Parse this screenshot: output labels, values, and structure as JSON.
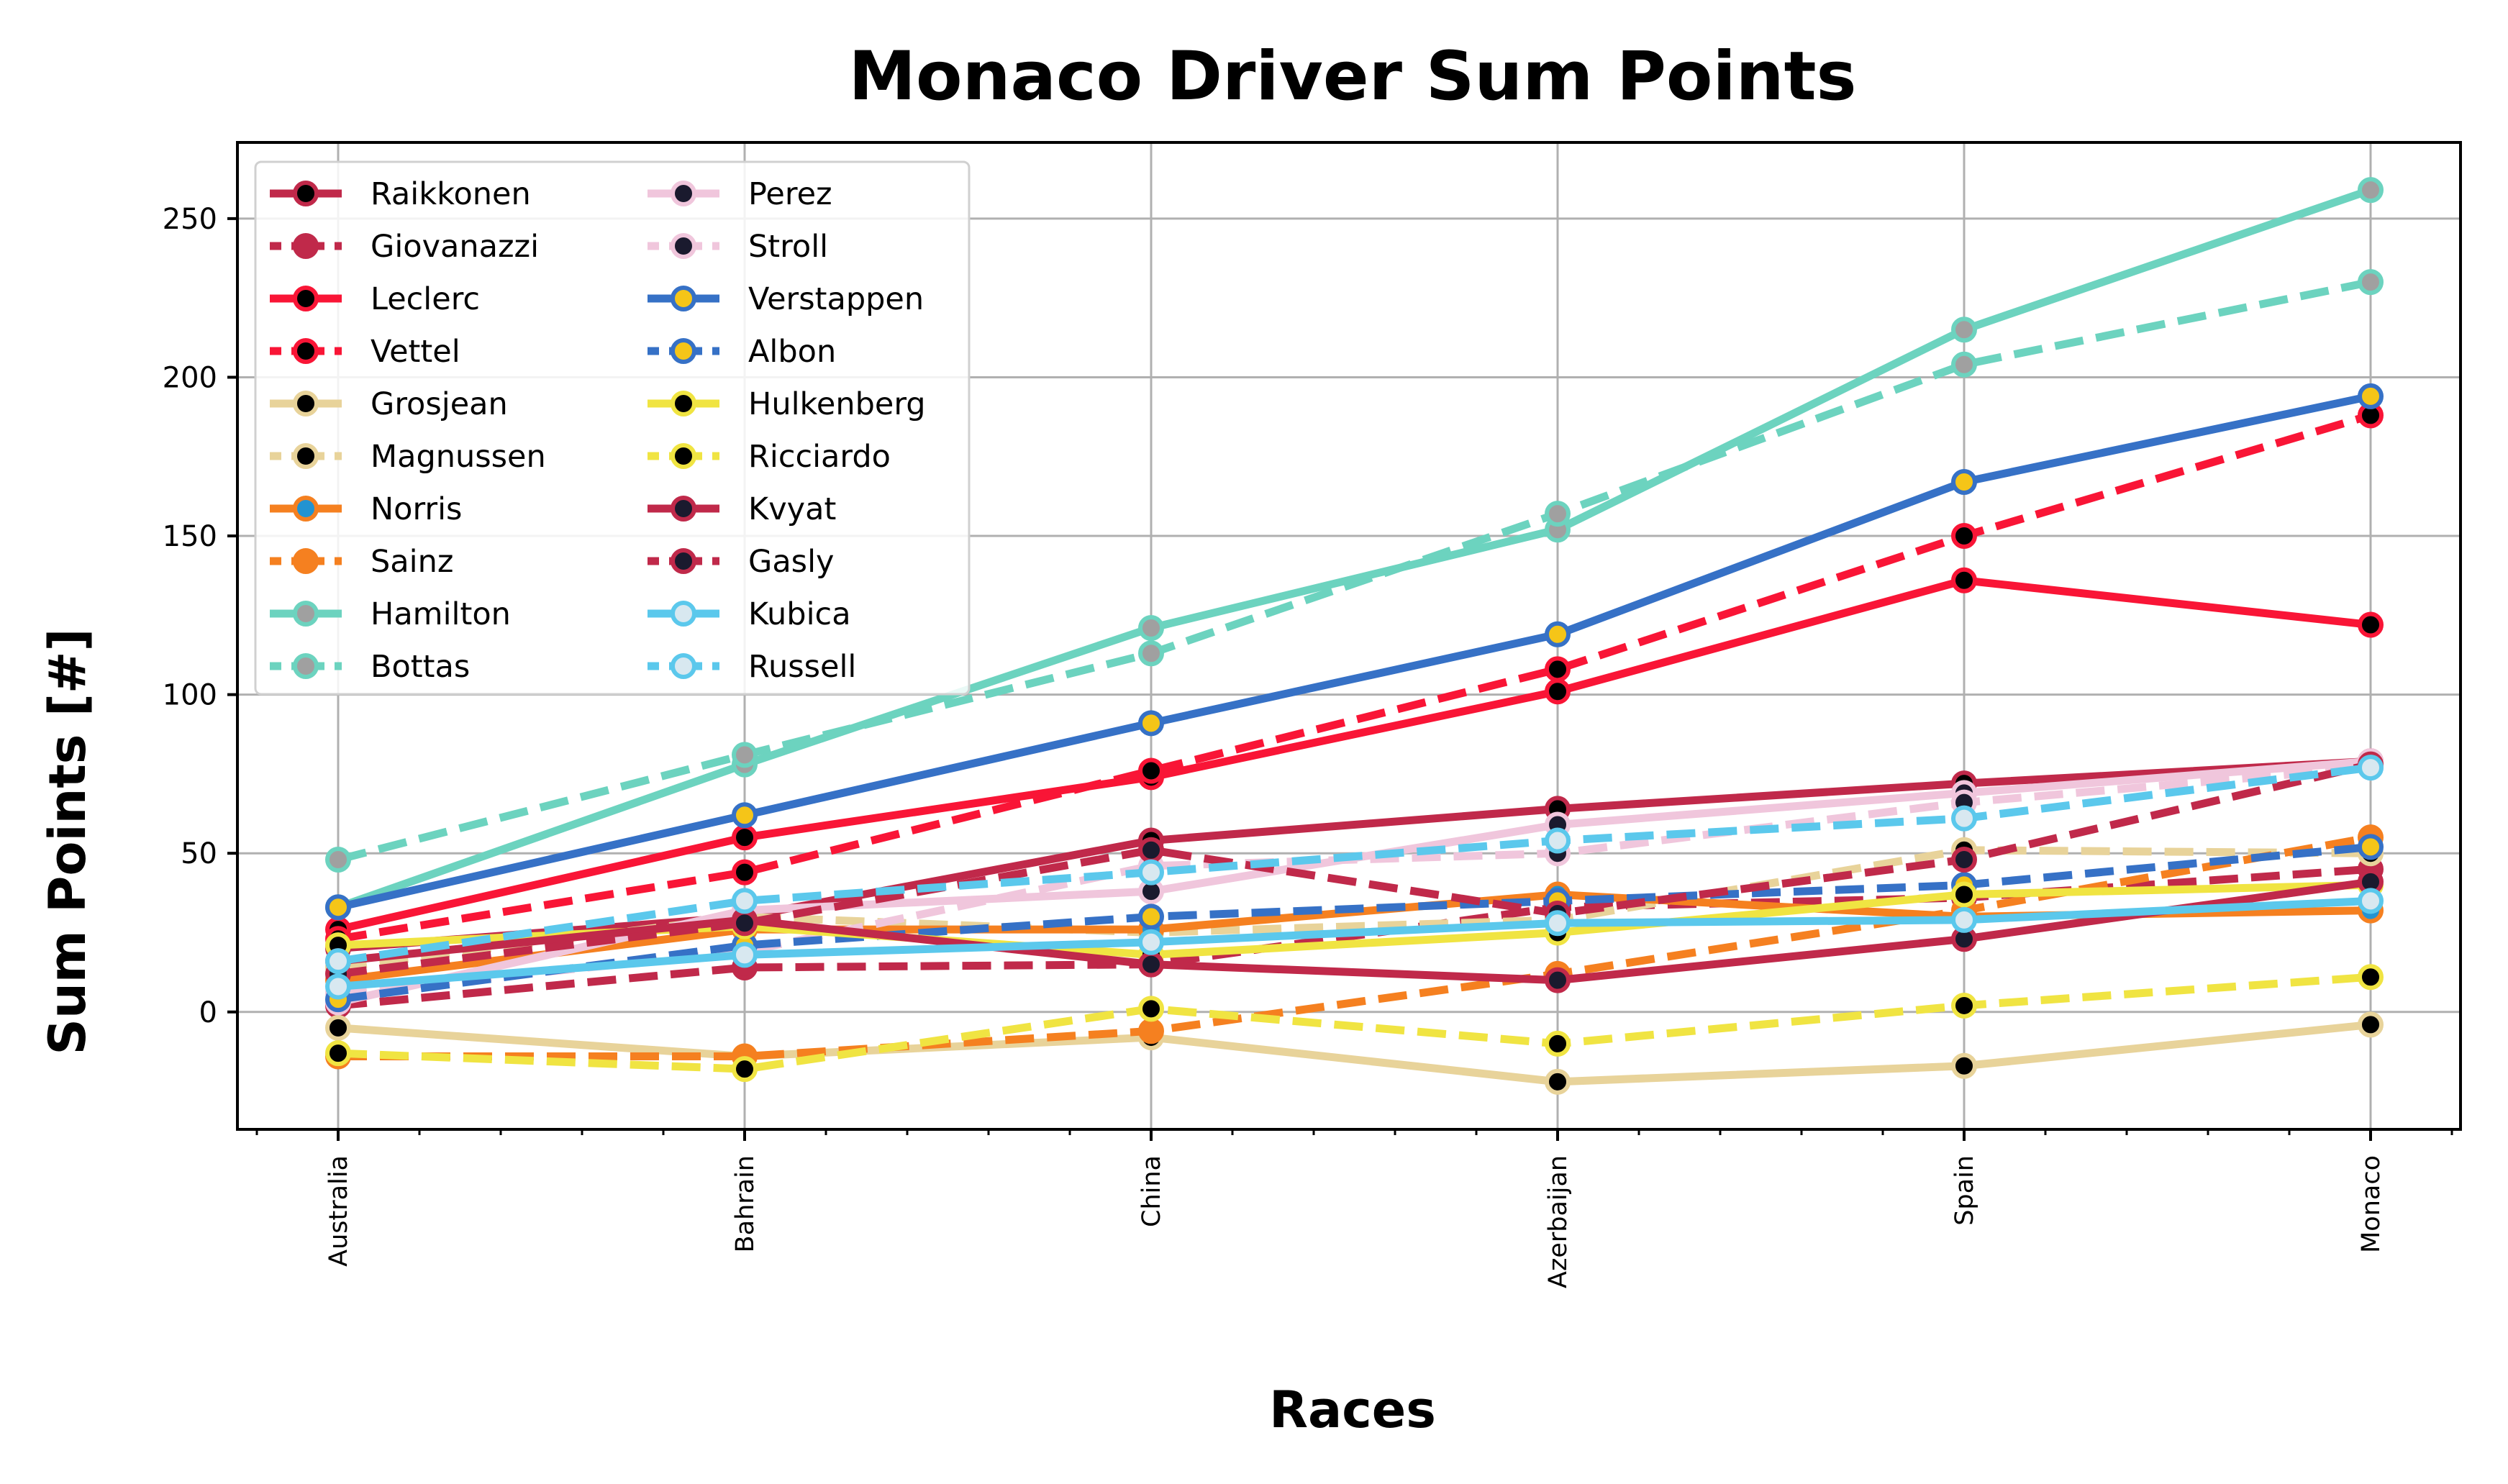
{
  "chart_data": {
    "type": "line",
    "title": "Monaco Driver Sum Points",
    "xlabel": "Races",
    "ylabel": "Sum Points [#]",
    "categories": [
      "Australia",
      "Bahrain",
      "China",
      "Azerbaijan",
      "Spain",
      "Monaco"
    ],
    "ylim": [
      -37,
      274
    ],
    "yticks": [
      0,
      50,
      100,
      150,
      200,
      250
    ],
    "grid": true,
    "legend_position": "top-left",
    "legend_columns": 2,
    "series": [
      {
        "name": "Raikkonen",
        "color": "#C0294A",
        "marker_fill": "#000000",
        "dash": "solid",
        "values": [
          20,
          30,
          54,
          64,
          72,
          79
        ]
      },
      {
        "name": "Giovanazzi",
        "color": "#C0294A",
        "marker_fill": "#C0294A",
        "dash": "dashed",
        "values": [
          2,
          14,
          15,
          33,
          36,
          45
        ]
      },
      {
        "name": "Leclerc",
        "color": "#F91536",
        "marker_fill": "#000000",
        "dash": "solid",
        "values": [
          26,
          55,
          74,
          101,
          136,
          122
        ]
      },
      {
        "name": "Vettel",
        "color": "#F91536",
        "marker_fill": "#000000",
        "dash": "dashed",
        "values": [
          23,
          44,
          76,
          108,
          150,
          188
        ]
      },
      {
        "name": "Grosjean",
        "color": "#E8D39A",
        "marker_fill": "#000000",
        "dash": "solid",
        "values": [
          -5,
          -14,
          -8,
          -22,
          -17,
          -4
        ]
      },
      {
        "name": "Magnussen",
        "color": "#E8D39A",
        "marker_fill": "#000000",
        "dash": "dashed",
        "values": [
          14,
          30,
          25,
          29,
          51,
          50
        ]
      },
      {
        "name": "Norris",
        "color": "#F58020",
        "marker_fill": "#2293D1",
        "dash": "solid",
        "values": [
          10,
          26,
          26,
          37,
          30,
          32
        ]
      },
      {
        "name": "Sainz",
        "color": "#F58020",
        "marker_fill": "#F58020",
        "dash": "dashed",
        "values": [
          -14,
          -14,
          -6,
          12,
          32,
          55
        ]
      },
      {
        "name": "Hamilton",
        "color": "#6CD3BF",
        "marker_fill": "#A0A0A0",
        "dash": "solid",
        "values": [
          33,
          78,
          121,
          152,
          215,
          259
        ]
      },
      {
        "name": "Bottas",
        "color": "#6CD3BF",
        "marker_fill": "#A0A0A0",
        "dash": "dashed",
        "values": [
          48,
          81,
          113,
          157,
          204,
          230
        ]
      },
      {
        "name": "Perez",
        "color": "#F0C6DC",
        "marker_fill": "#1A1A2E",
        "dash": "solid",
        "values": [
          3,
          32,
          38,
          59,
          69,
          79
        ]
      },
      {
        "name": "Stroll",
        "color": "#F0C6DC",
        "marker_fill": "#1A1A2E",
        "dash": "dashed",
        "values": [
          6,
          19,
          46,
          50,
          66,
          77
        ]
      },
      {
        "name": "Verstappen",
        "color": "#3671C6",
        "marker_fill": "#F5C518",
        "dash": "solid",
        "values": [
          33,
          62,
          91,
          119,
          167,
          194
        ]
      },
      {
        "name": "Albon",
        "color": "#3671C6",
        "marker_fill": "#F5C518",
        "dash": "dashed",
        "values": [
          4,
          21,
          30,
          35,
          40,
          52
        ]
      },
      {
        "name": "Hulkenberg",
        "color": "#F0E442",
        "marker_fill": "#000000",
        "dash": "solid",
        "values": [
          21,
          27,
          18,
          25,
          37,
          40
        ]
      },
      {
        "name": "Ricciardo",
        "color": "#F0E442",
        "marker_fill": "#000000",
        "dash": "dashed",
        "values": [
          -13,
          -18,
          1,
          -10,
          2,
          11
        ]
      },
      {
        "name": "Kvyat",
        "color": "#C0294A",
        "marker_fill": "#1A1A2E",
        "dash": "solid",
        "values": [
          16,
          29,
          15,
          10,
          23,
          41
        ]
      },
      {
        "name": "Gasly",
        "color": "#C0294A",
        "marker_fill": "#1A1A2E",
        "dash": "dashed",
        "values": [
          12,
          28,
          51,
          31,
          48,
          78
        ]
      },
      {
        "name": "Kubica",
        "color": "#5BC8EC",
        "marker_fill": "#D8E8F0",
        "dash": "solid",
        "values": [
          8,
          18,
          22,
          28,
          29,
          35
        ]
      },
      {
        "name": "Russell",
        "color": "#5BC8EC",
        "marker_fill": "#D8E8F0",
        "dash": "dashed",
        "values": [
          16,
          35,
          44,
          54,
          61,
          77
        ]
      }
    ]
  }
}
